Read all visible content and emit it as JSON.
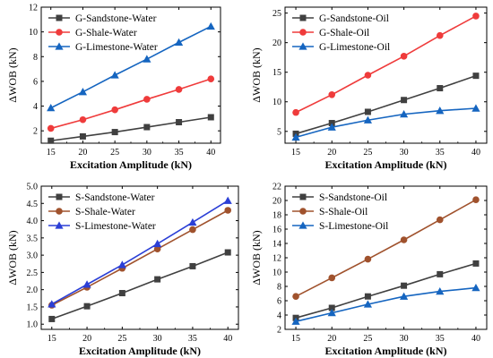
{
  "chart_data": [
    {
      "type": "line",
      "x": [
        15,
        20,
        25,
        30,
        35,
        40
      ],
      "xlabel": "Excitation Amplitude (kN)",
      "ylabel": "ΔWOB (kN)",
      "xlim": [
        13.5,
        41.5
      ],
      "ylim": [
        1,
        12
      ],
      "xticks": [
        15,
        20,
        25,
        30,
        35,
        40
      ],
      "yticks": [
        2,
        4,
        6,
        8,
        10,
        12
      ],
      "legend_position": "top-left",
      "series": [
        {
          "name": "G-Sandstone-Water",
          "color": "#404040",
          "marker": "square",
          "values": [
            1.2,
            1.55,
            1.9,
            2.3,
            2.7,
            3.1
          ]
        },
        {
          "name": "G-Shale-Water",
          "color": "#ef3b3b",
          "marker": "circle",
          "values": [
            2.2,
            2.9,
            3.7,
            4.55,
            5.35,
            6.2
          ]
        },
        {
          "name": "G-Limestone-Water",
          "color": "#1565c0",
          "marker": "triangle",
          "values": [
            3.85,
            5.15,
            6.5,
            7.8,
            9.15,
            10.45
          ]
        }
      ]
    },
    {
      "type": "line",
      "x": [
        15,
        20,
        25,
        30,
        35,
        40
      ],
      "xlabel": "Excitation Amplitude (kN)",
      "ylabel": "ΔWOB (kN)",
      "xlim": [
        13.5,
        41.5
      ],
      "ylim": [
        3,
        26
      ],
      "xticks": [
        15,
        20,
        25,
        30,
        35,
        40
      ],
      "yticks": [
        5,
        10,
        15,
        20,
        25
      ],
      "legend_position": "top-left",
      "series": [
        {
          "name": "G-Sandstone-Oil",
          "color": "#404040",
          "marker": "square",
          "values": [
            4.6,
            6.4,
            8.3,
            10.3,
            12.3,
            14.4
          ]
        },
        {
          "name": "G-Shale-Oil",
          "color": "#ef3b3b",
          "marker": "circle",
          "values": [
            8.2,
            11.2,
            14.5,
            17.7,
            21.2,
            24.5
          ]
        },
        {
          "name": "G-Limestone-Oil",
          "color": "#1565c0",
          "marker": "triangle",
          "values": [
            4.0,
            5.7,
            6.9,
            7.9,
            8.5,
            8.9
          ]
        }
      ]
    },
    {
      "type": "line",
      "x": [
        15,
        20,
        25,
        30,
        35,
        40
      ],
      "xlabel": "Excitation Amplitude (kN)",
      "ylabel": "ΔWOB (kN)",
      "xlim": [
        13.5,
        41.5
      ],
      "ylim": [
        0.85,
        5.0
      ],
      "xticks": [
        15,
        20,
        25,
        30,
        35,
        40
      ],
      "yticks": [
        1.0,
        1.5,
        2.0,
        2.5,
        3.0,
        3.5,
        4.0,
        4.5,
        5.0
      ],
      "legend_position": "top-left",
      "series": [
        {
          "name": "S-Sandstone-Water",
          "color": "#404040",
          "marker": "square",
          "values": [
            1.15,
            1.52,
            1.9,
            2.3,
            2.68,
            3.08
          ]
        },
        {
          "name": "S-Shale-Water",
          "color": "#a0522d",
          "marker": "circle",
          "values": [
            1.55,
            2.07,
            2.62,
            3.18,
            3.74,
            4.3
          ]
        },
        {
          "name": "S-Limestone-Water",
          "color": "#2b3fd6",
          "marker": "triangle",
          "values": [
            1.58,
            2.15,
            2.72,
            3.33,
            3.95,
            4.58
          ]
        }
      ]
    },
    {
      "type": "line",
      "x": [
        15,
        20,
        25,
        30,
        35,
        40
      ],
      "xlabel": "Excitation Amplitude (kN)",
      "ylabel": "ΔWOB (kN)",
      "xlim": [
        13.5,
        41.5
      ],
      "ylim": [
        2,
        22
      ],
      "xticks": [
        15,
        20,
        25,
        30,
        35,
        40
      ],
      "yticks": [
        2,
        4,
        6,
        8,
        10,
        12,
        14,
        16,
        18,
        20,
        22
      ],
      "legend_position": "top-left",
      "series": [
        {
          "name": "S-Sandstone-Oil",
          "color": "#404040",
          "marker": "square",
          "values": [
            3.6,
            5.0,
            6.6,
            8.1,
            9.7,
            11.2
          ]
        },
        {
          "name": "S-Shale-Oil",
          "color": "#a0522d",
          "marker": "circle",
          "values": [
            6.6,
            9.2,
            11.8,
            14.5,
            17.3,
            20.1
          ]
        },
        {
          "name": "S-Limestone-Oil",
          "color": "#1565c0",
          "marker": "triangle",
          "values": [
            3.1,
            4.3,
            5.5,
            6.6,
            7.3,
            7.8
          ]
        }
      ]
    }
  ]
}
